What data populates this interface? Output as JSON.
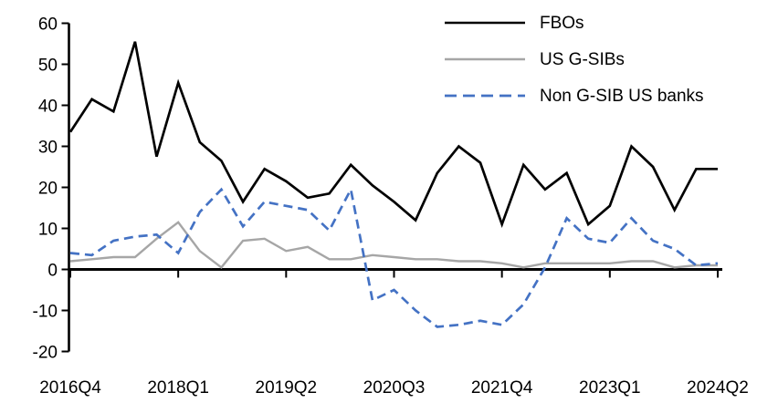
{
  "chart_data": {
    "type": "line",
    "title": "",
    "xlabel": "",
    "ylabel": "",
    "ylim": [
      -20,
      60
    ],
    "y_ticks": [
      60,
      50,
      40,
      30,
      20,
      10,
      0,
      -10,
      -20
    ],
    "grid": "off",
    "legend_position": "top-right",
    "categories": [
      "2016Q4",
      "2017Q1",
      "2017Q2",
      "2017Q3",
      "2017Q4",
      "2018Q1",
      "2018Q2",
      "2018Q3",
      "2018Q4",
      "2019Q1",
      "2019Q2",
      "2019Q3",
      "2019Q4",
      "2020Q1",
      "2020Q2",
      "2020Q3",
      "2020Q4",
      "2021Q1",
      "2021Q2",
      "2021Q3",
      "2021Q4",
      "2022Q1",
      "2022Q2",
      "2022Q3",
      "2022Q4",
      "2023Q1",
      "2023Q2",
      "2023Q3",
      "2023Q4",
      "2024Q1",
      "2024Q2"
    ],
    "x_axis_ticks_shown": [
      "2016Q4",
      "2018Q1",
      "2019Q2",
      "2020Q3",
      "2021Q4",
      "2023Q1",
      "2024Q2"
    ],
    "series": [
      {
        "name": "FBOs",
        "color": "#000000",
        "line_style": "solid",
        "values": [
          33.5,
          41.5,
          38.5,
          55.5,
          27.5,
          45.5,
          31,
          26.5,
          16.5,
          24.5,
          21.5,
          17.5,
          18.5,
          25.5,
          20.5,
          16.5,
          12,
          23.5,
          30,
          26,
          11,
          25.5,
          19.5,
          23.5,
          11,
          15.5,
          30,
          25,
          14.5,
          24.5,
          24.5
        ]
      },
      {
        "name": "US G-SIBs",
        "color": "#A6A6A6",
        "line_style": "solid",
        "values": [
          2,
          2.5,
          3,
          3,
          7.5,
          11.5,
          4.5,
          0.5,
          7,
          7.5,
          4.5,
          5.5,
          2.5,
          2.5,
          3.5,
          3,
          2.5,
          2.5,
          2,
          2,
          1.5,
          0.5,
          1.5,
          1.5,
          1.5,
          1.5,
          2,
          2,
          0.5,
          1,
          1
        ]
      },
      {
        "name": "Non G-SIB US banks",
        "color": "#4472C4",
        "line_style": "dashed",
        "values": [
          4,
          3.5,
          7,
          8,
          8.5,
          4,
          14,
          19.5,
          10.5,
          16.5,
          15.5,
          14.5,
          9.5,
          19.5,
          -7.5,
          -5,
          -10,
          -14,
          -13.5,
          -12.5,
          -13.5,
          -8.5,
          0.5,
          12.5,
          7.5,
          6.5,
          12.5,
          7,
          5,
          1,
          1.5
        ]
      }
    ]
  }
}
